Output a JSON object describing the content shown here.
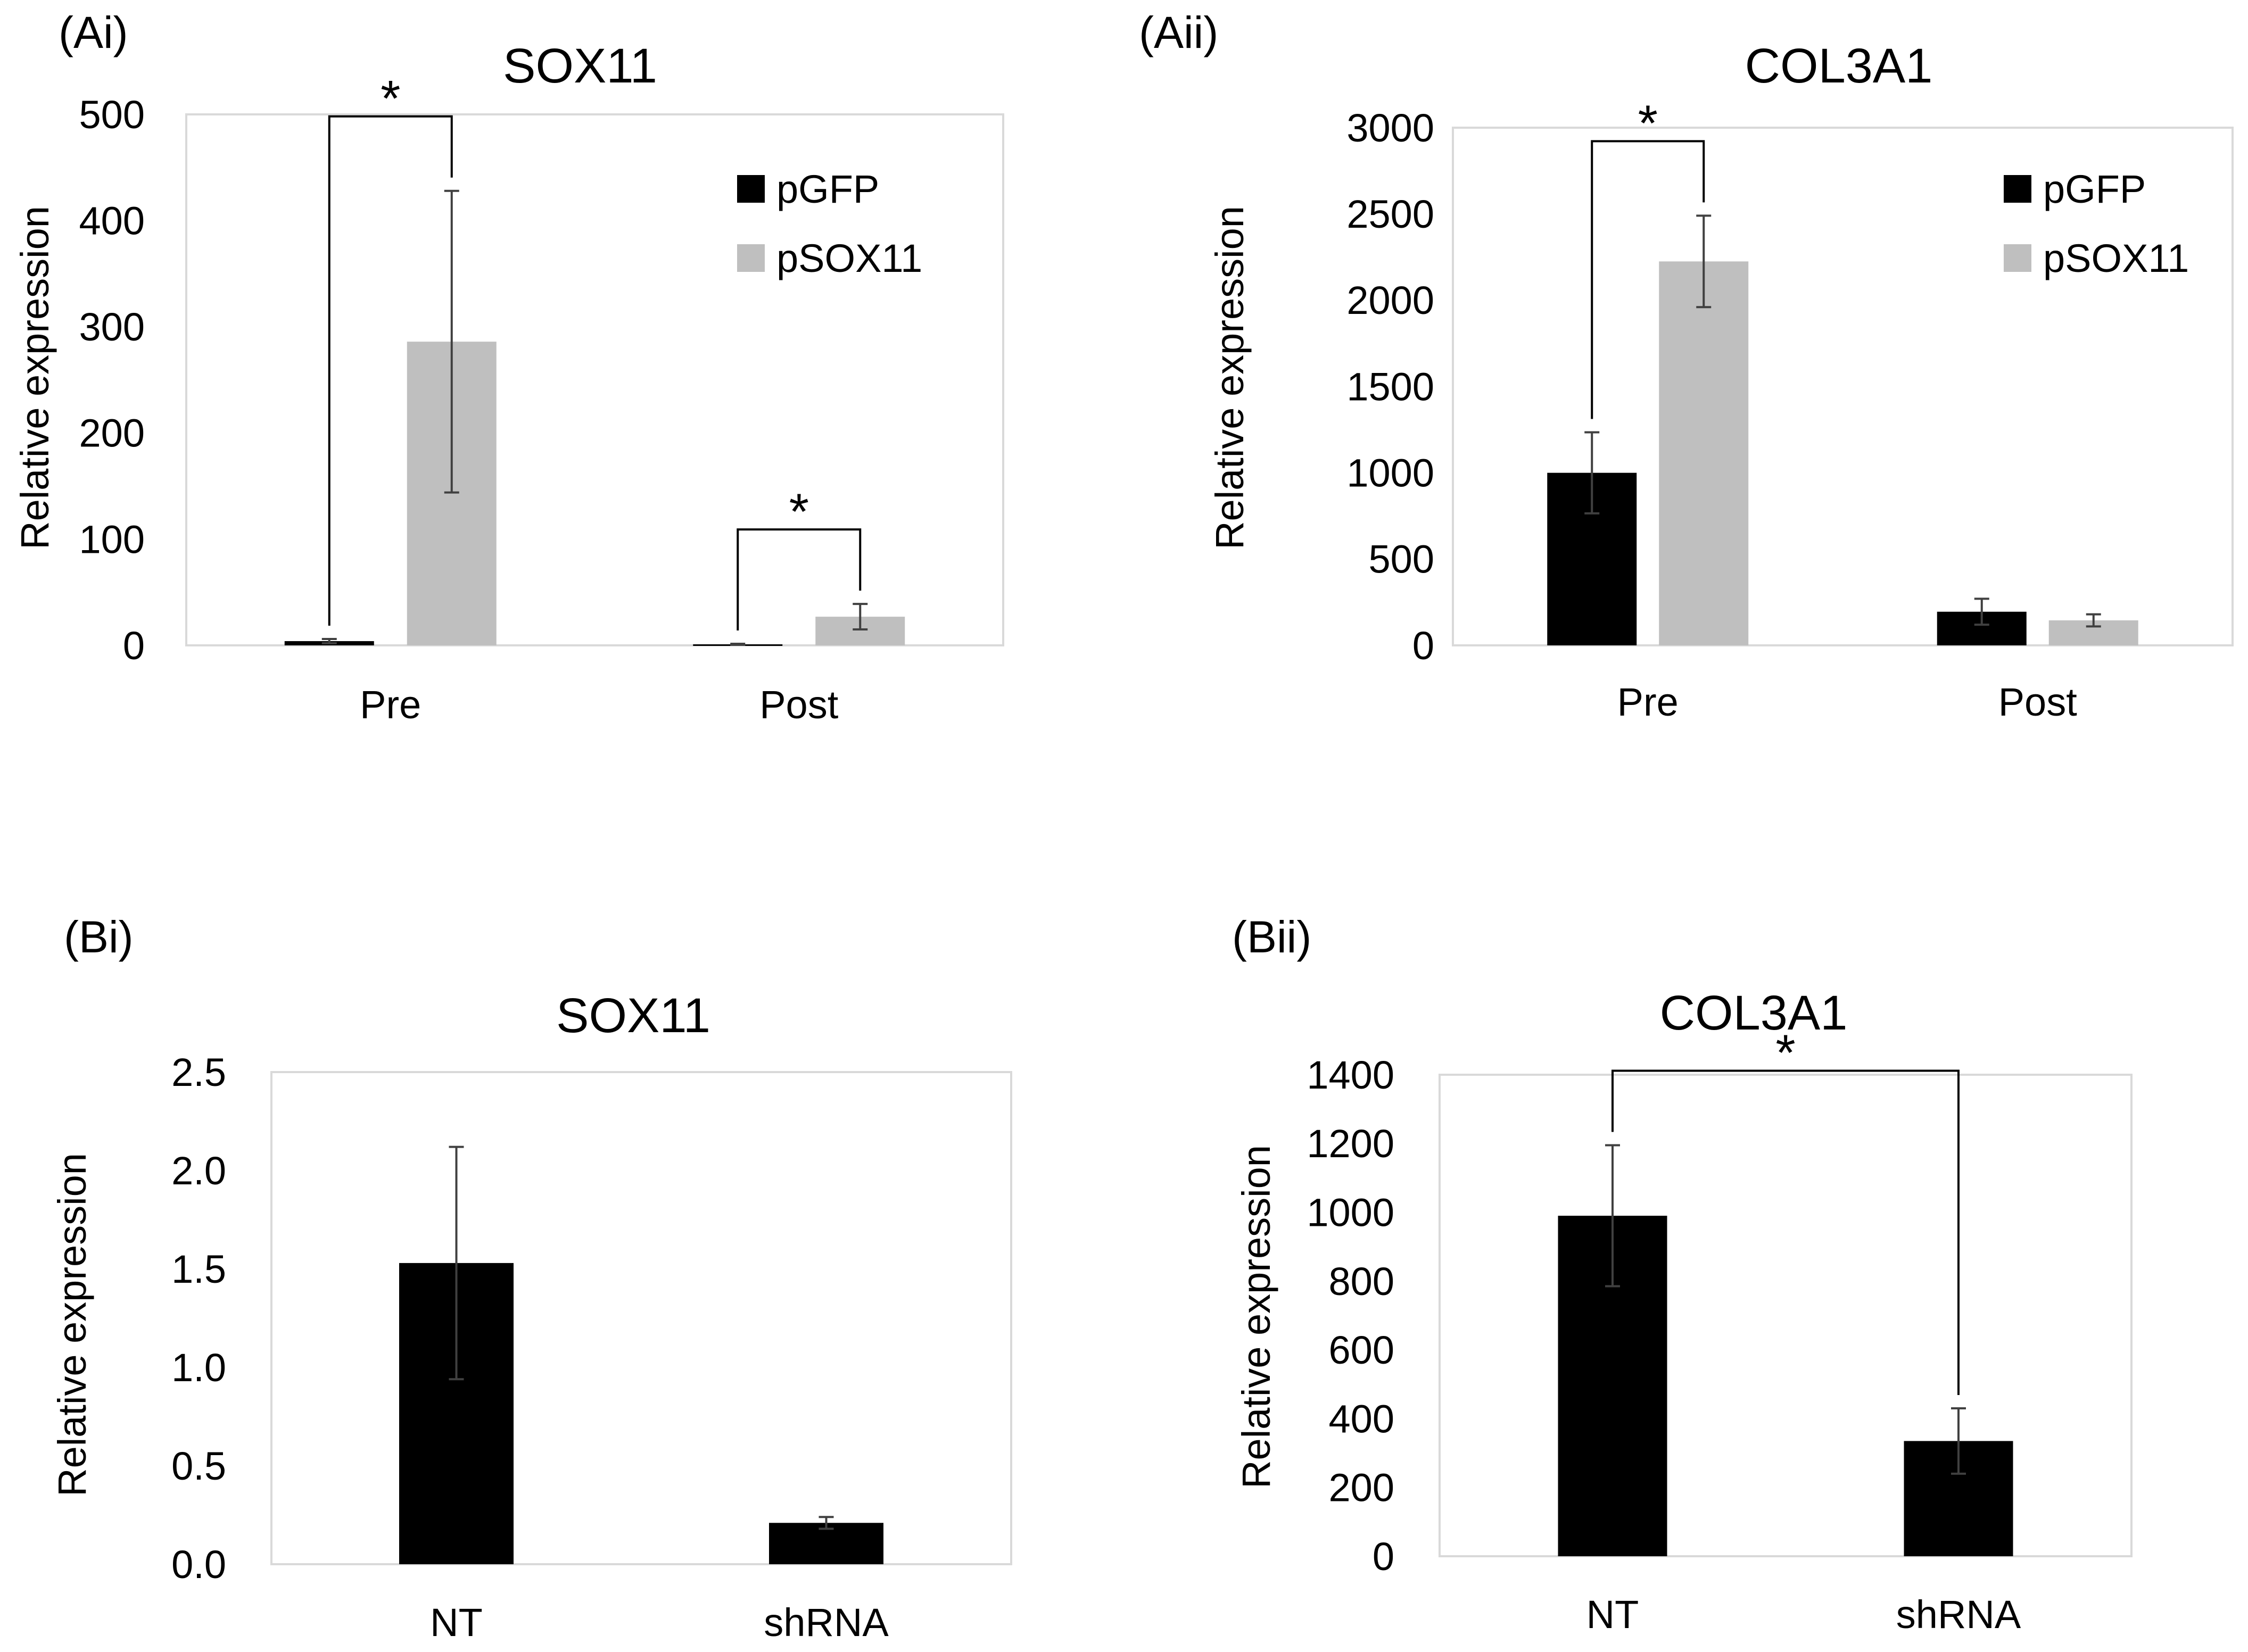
{
  "chart_data": [
    {
      "panel_label": "(Ai)",
      "type": "bar",
      "title": "SOX11",
      "ylabel": "Relative expression",
      "xlabel": "",
      "ylim": [
        0,
        500
      ],
      "yticks": [
        0,
        100,
        200,
        300,
        400,
        500
      ],
      "ytick_labels": [
        "0",
        "100",
        "200",
        "300",
        "400",
        "500"
      ],
      "categories": [
        "Pre",
        "Post"
      ],
      "series": [
        {
          "name": "pGFP",
          "color": "#000000",
          "values": [
            4,
            1
          ],
          "errors": [
            2,
            0.5
          ]
        },
        {
          "name": "pSOX11",
          "color": "#bfbfbf",
          "values": [
            286,
            27
          ],
          "errors": [
            142,
            12
          ]
        }
      ],
      "legend_position": "top-right",
      "significance": [
        {
          "label": "*",
          "between": [
            "Pre:pGFP",
            "Pre:pSOX11"
          ]
        },
        {
          "label": "*",
          "between": [
            "Post:pGFP",
            "Post:pSOX11"
          ]
        }
      ],
      "grid": false
    },
    {
      "panel_label": "(Aii)",
      "type": "bar",
      "title": "COL3A1",
      "ylabel": "Relative expression",
      "xlabel": "",
      "ylim": [
        0,
        3000
      ],
      "yticks": [
        0,
        500,
        1000,
        1500,
        2000,
        2500,
        3000
      ],
      "ytick_labels": [
        "0",
        "500",
        "1000",
        "1500",
        "2000",
        "2500",
        "3000"
      ],
      "categories": [
        "Pre",
        "Post"
      ],
      "series": [
        {
          "name": "pGFP",
          "color": "#000000",
          "values": [
            1000,
            195
          ],
          "errors": [
            235,
            75
          ]
        },
        {
          "name": "pSOX11",
          "color": "#bfbfbf",
          "values": [
            2225,
            145
          ],
          "errors": [
            265,
            35
          ]
        }
      ],
      "legend_position": "top-right",
      "significance": [
        {
          "label": "*",
          "between": [
            "Pre:pGFP",
            "Pre:pSOX11"
          ]
        }
      ],
      "grid": false
    },
    {
      "panel_label": "(Bi)",
      "type": "bar",
      "title": "SOX11",
      "ylabel": "Relative expression",
      "xlabel": "",
      "ylim": [
        0,
        2.5
      ],
      "yticks": [
        0,
        0.5,
        1.0,
        1.5,
        2.0,
        2.5
      ],
      "ytick_labels": [
        "0.0",
        "0.5",
        "1.0",
        "1.5",
        "2.0",
        "2.5"
      ],
      "categories": [
        "NT",
        "shRNA"
      ],
      "series": [
        {
          "name": "",
          "color": "#000000",
          "values": [
            1.53,
            0.21
          ],
          "errors": [
            0.59,
            0.03
          ]
        }
      ],
      "significance": [],
      "grid": false
    },
    {
      "panel_label": "(Bii)",
      "type": "bar",
      "title": "COL3A1",
      "ylabel": "Relative expression",
      "xlabel": "",
      "ylim": [
        0,
        1400
      ],
      "yticks": [
        0,
        200,
        400,
        600,
        800,
        1000,
        1200,
        1400
      ],
      "ytick_labels": [
        "0",
        "200",
        "400",
        "600",
        "800",
        "1000",
        "1200",
        "1400"
      ],
      "categories": [
        "NT",
        "shRNA"
      ],
      "series": [
        {
          "name": "",
          "color": "#000000",
          "values": [
            990,
            335
          ],
          "errors": [
            205,
            95
          ]
        }
      ],
      "significance": [
        {
          "label": "*",
          "between": [
            "NT",
            "shRNA"
          ]
        }
      ],
      "grid": false
    }
  ]
}
